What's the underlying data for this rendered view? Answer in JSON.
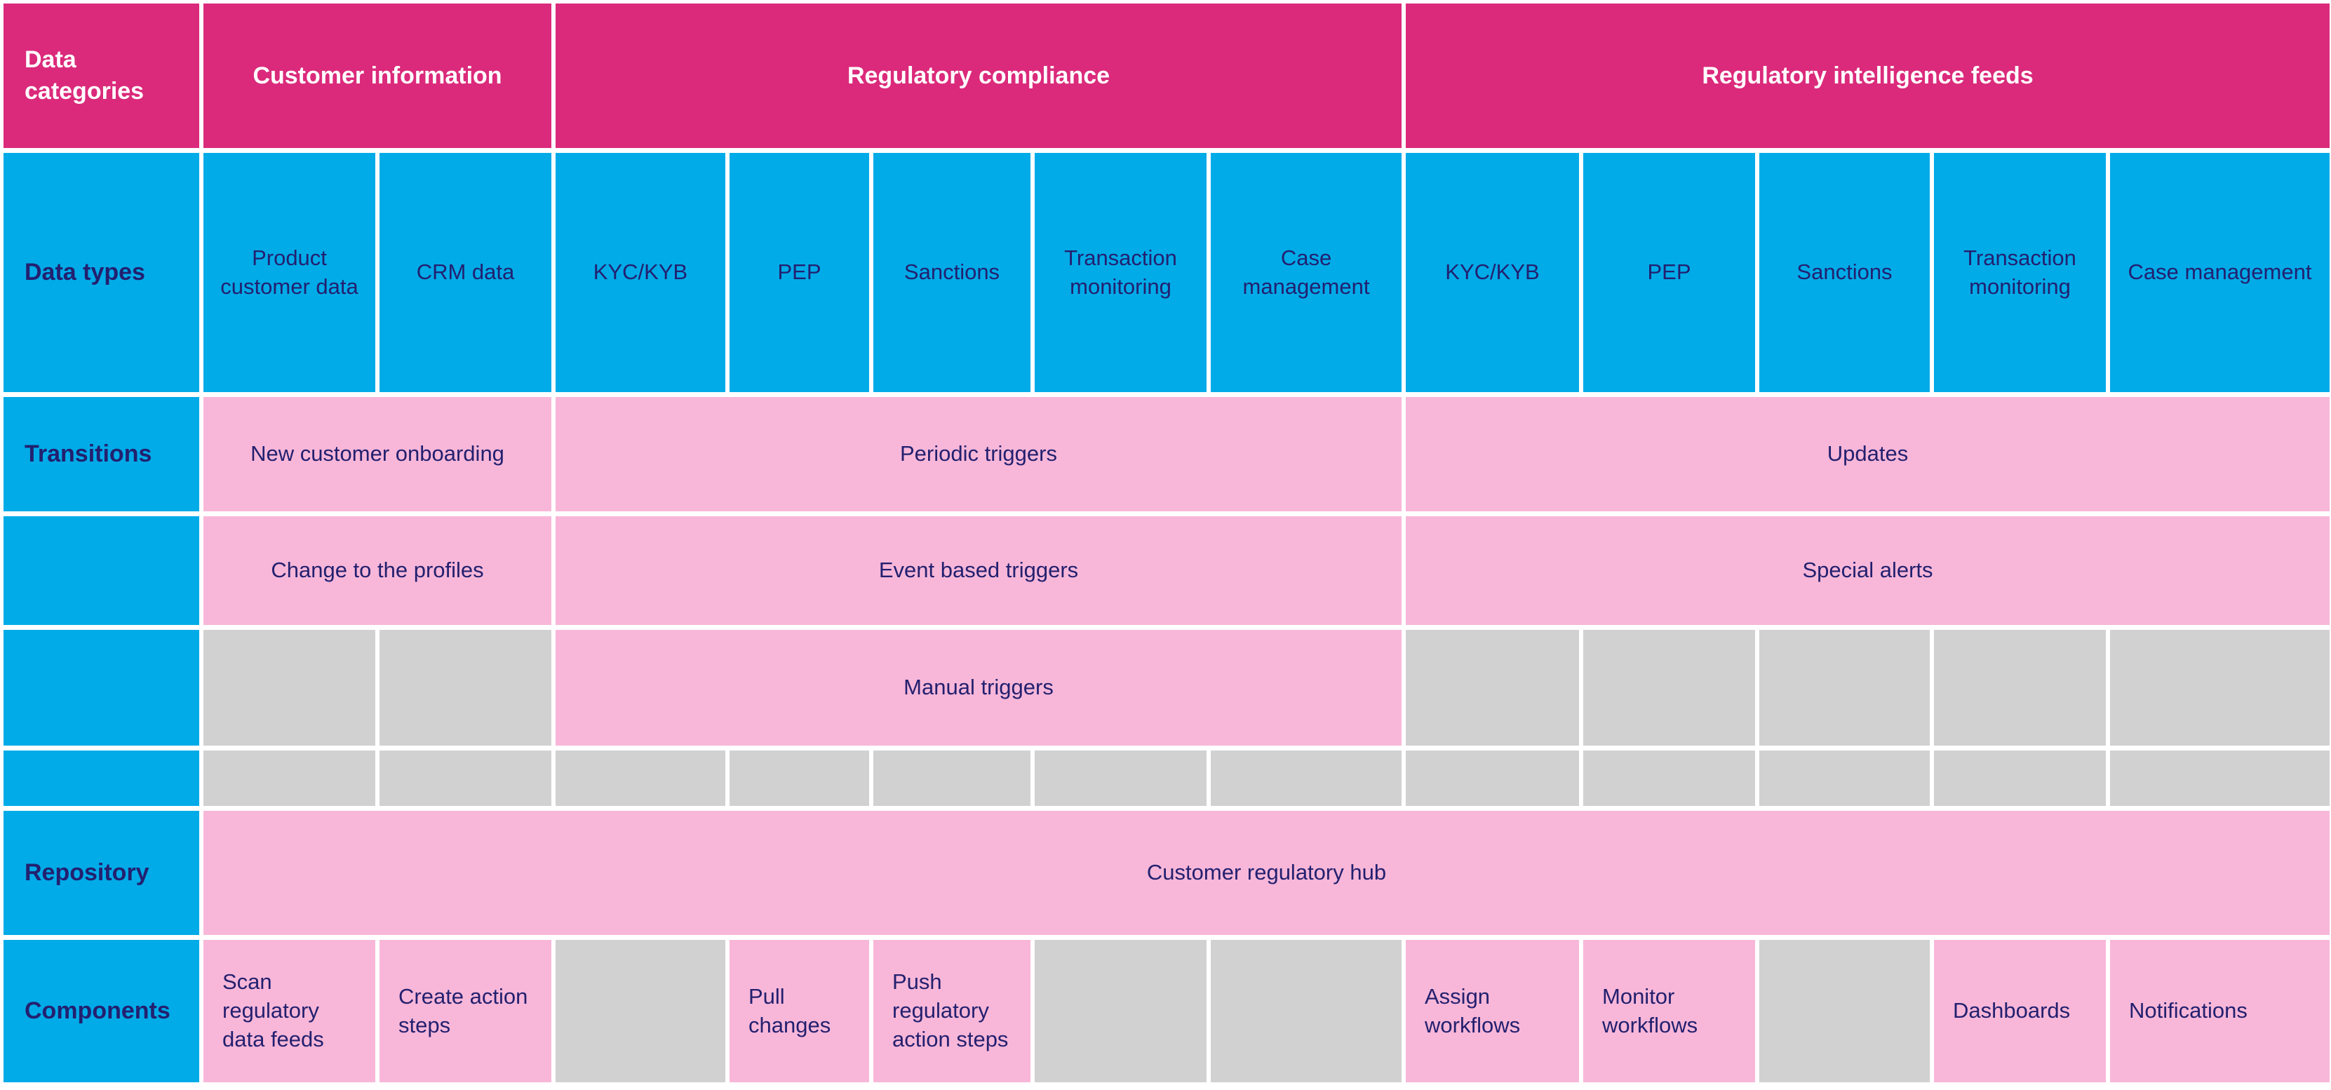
{
  "colors": {
    "magenta": "#DB2A7B",
    "blue": "#00ABE8",
    "pink": "#F8B7D9",
    "gray": "#D1D1D1",
    "text_navy": "#23206F",
    "header_text": "#FFFFFF",
    "background": "#FFFFFF"
  },
  "rows": [
    {
      "kind": "header",
      "label": {
        "text": "Data categories",
        "bg": "magenta"
      },
      "cells": [
        {
          "text": "Customer information",
          "span": 2,
          "bg": "magenta"
        },
        {
          "text": "Regulatory compliance",
          "span": 5,
          "bg": "magenta"
        },
        {
          "text": "Regulatory intelligence feeds",
          "span": 5,
          "bg": "magenta"
        }
      ]
    },
    {
      "kind": "data-types",
      "label": {
        "text": "Data types",
        "bg": "blue"
      },
      "cells": [
        {
          "text": "Product customer data",
          "span": 1,
          "bg": "blue"
        },
        {
          "text": "CRM data",
          "span": 1,
          "bg": "blue"
        },
        {
          "text": "KYC/KYB",
          "span": 1,
          "bg": "blue"
        },
        {
          "text": "PEP",
          "span": 1,
          "bg": "blue"
        },
        {
          "text": "Sanctions",
          "span": 1,
          "bg": "blue"
        },
        {
          "text": "Transaction monitoring",
          "span": 1,
          "bg": "blue"
        },
        {
          "text": "Case management",
          "span": 1,
          "bg": "blue"
        },
        {
          "text": "KYC/KYB",
          "span": 1,
          "bg": "blue"
        },
        {
          "text": "PEP",
          "span": 1,
          "bg": "blue"
        },
        {
          "text": "Sanctions",
          "span": 1,
          "bg": "blue"
        },
        {
          "text": "Transaction monitoring",
          "span": 1,
          "bg": "blue"
        },
        {
          "text": "Case management",
          "span": 1,
          "bg": "blue"
        }
      ]
    },
    {
      "kind": "transitions",
      "label": {
        "text": "Transitions",
        "bg": "blue"
      },
      "cells": [
        {
          "text": "New customer onboarding",
          "span": 2,
          "bg": "pink"
        },
        {
          "text": "Periodic triggers",
          "span": 5,
          "bg": "pink"
        },
        {
          "text": "Updates",
          "span": 5,
          "bg": "pink"
        }
      ]
    },
    {
      "kind": "transitions",
      "label": {
        "text": "",
        "bg": "blue"
      },
      "cells": [
        {
          "text": "Change to the profiles",
          "span": 2,
          "bg": "pink"
        },
        {
          "text": "Event based triggers",
          "span": 5,
          "bg": "pink"
        },
        {
          "text": "Special alerts",
          "span": 5,
          "bg": "pink"
        }
      ]
    },
    {
      "kind": "transitions",
      "label": {
        "text": "",
        "bg": "blue"
      },
      "cells": [
        {
          "text": "",
          "span": 1,
          "bg": "gray"
        },
        {
          "text": "",
          "span": 1,
          "bg": "gray"
        },
        {
          "text": "Manual triggers",
          "span": 5,
          "bg": "pink"
        },
        {
          "text": "",
          "span": 1,
          "bg": "gray"
        },
        {
          "text": "",
          "span": 1,
          "bg": "gray"
        },
        {
          "text": "",
          "span": 1,
          "bg": "gray"
        },
        {
          "text": "",
          "span": 1,
          "bg": "gray"
        },
        {
          "text": "",
          "span": 1,
          "bg": "gray"
        }
      ]
    },
    {
      "kind": "transitions",
      "label": {
        "text": "",
        "bg": "blue"
      },
      "cells": [
        {
          "text": "",
          "span": 1,
          "bg": "gray"
        },
        {
          "text": "",
          "span": 1,
          "bg": "gray"
        },
        {
          "text": "",
          "span": 1,
          "bg": "gray"
        },
        {
          "text": "",
          "span": 1,
          "bg": "gray"
        },
        {
          "text": "",
          "span": 1,
          "bg": "gray"
        },
        {
          "text": "",
          "span": 1,
          "bg": "gray"
        },
        {
          "text": "",
          "span": 1,
          "bg": "gray"
        },
        {
          "text": "",
          "span": 1,
          "bg": "gray"
        },
        {
          "text": "",
          "span": 1,
          "bg": "gray"
        },
        {
          "text": "",
          "span": 1,
          "bg": "gray"
        },
        {
          "text": "",
          "span": 1,
          "bg": "gray"
        },
        {
          "text": "",
          "span": 1,
          "bg": "gray"
        }
      ]
    },
    {
      "kind": "repository",
      "label": {
        "text": "Repository",
        "bg": "blue"
      },
      "cells": [
        {
          "text": "Customer regulatory hub",
          "span": 12,
          "bg": "pink"
        }
      ]
    },
    {
      "kind": "components",
      "label": {
        "text": "Components",
        "bg": "blue"
      },
      "cells": [
        {
          "text": "Scan regulatory data feeds",
          "span": 1,
          "bg": "pink",
          "align": "left"
        },
        {
          "text": "Create action steps",
          "span": 1,
          "bg": "pink",
          "align": "left"
        },
        {
          "text": "",
          "span": 1,
          "bg": "gray"
        },
        {
          "text": "Pull changes",
          "span": 1,
          "bg": "pink",
          "align": "left"
        },
        {
          "text": "Push regulatory action steps",
          "span": 1,
          "bg": "pink",
          "align": "left"
        },
        {
          "text": "",
          "span": 1,
          "bg": "gray"
        },
        {
          "text": "",
          "span": 1,
          "bg": "gray"
        },
        {
          "text": "Assign workflows",
          "span": 1,
          "bg": "pink",
          "align": "left"
        },
        {
          "text": "Monitor workflows",
          "span": 1,
          "bg": "pink",
          "align": "left"
        },
        {
          "text": "",
          "span": 1,
          "bg": "gray"
        },
        {
          "text": "Dashboards",
          "span": 1,
          "bg": "pink",
          "align": "left"
        },
        {
          "text": "Notifications",
          "span": 1,
          "bg": "pink",
          "align": "left"
        }
      ]
    }
  ]
}
